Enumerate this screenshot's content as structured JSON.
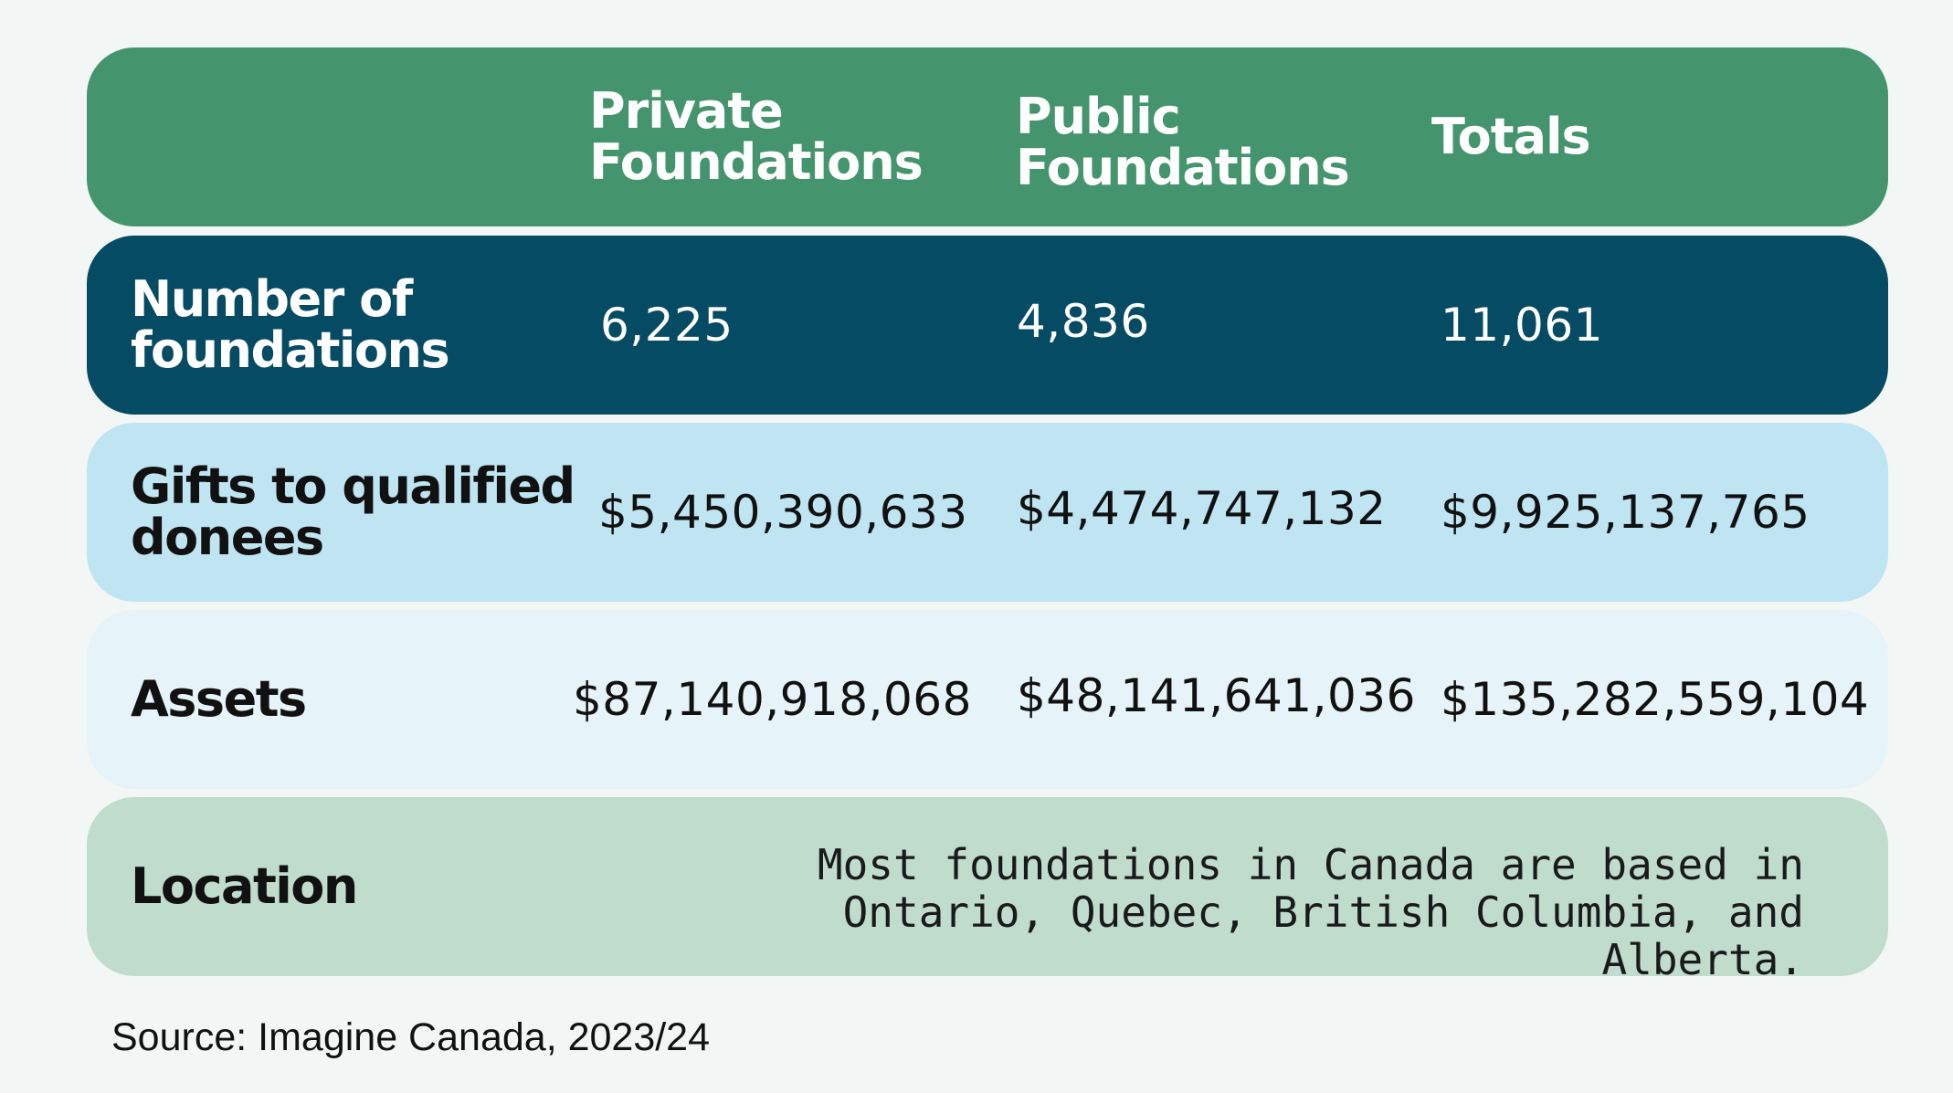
{
  "colors": {
    "header": "#44956e",
    "number_row": "#064b64",
    "gifts_row": "#bfe4f2",
    "assets_row": "#e6f3f8",
    "location_row": "#bfdccd"
  },
  "header": {
    "col_private": "Private Foundations",
    "col_public": "Public Foundations",
    "col_totals": "Totals"
  },
  "rows": {
    "number": {
      "label": "Number of foundations",
      "private": "6,225",
      "public": "4,836",
      "totals": "11,061"
    },
    "gifts": {
      "label": "Gifts to qualified donees",
      "private": "$5,450,390,633",
      "public": "$4,474,747,132",
      "totals": "$9,925,137,765"
    },
    "assets": {
      "label": "Assets",
      "private": "$87,140,918,068",
      "public": "$48,141,641,036",
      "totals": "$135,282,559,104"
    },
    "location": {
      "label": "Location",
      "text": "Most foundations in Canada are based in Ontario, Quebec, British Columbia, and Alberta."
    }
  },
  "source": "Source: Imagine Canada, 2023/24"
}
